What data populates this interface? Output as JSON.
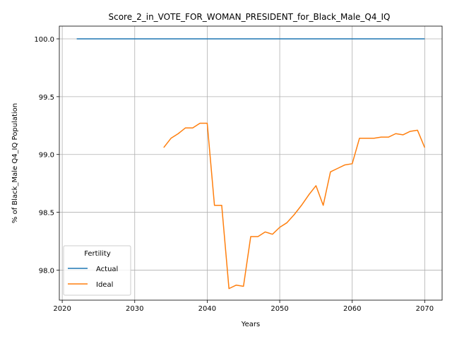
{
  "chart_data": {
    "type": "line",
    "title": "Score_2_in_VOTE_FOR_WOMAN_PRESIDENT_for_Black_Male_Q4_IQ",
    "xlabel": "Years",
    "ylabel": "% of Black_Male Q4_IQ Population",
    "xlim": [
      2019.6,
      2072.4
    ],
    "ylim": [
      97.74,
      100.11
    ],
    "xticks": [
      2020,
      2030,
      2040,
      2050,
      2060,
      2070
    ],
    "xtick_labels": [
      "2020",
      "2030",
      "2040",
      "2050",
      "2060",
      "2070"
    ],
    "yticks": [
      98.0,
      98.5,
      99.0,
      99.5,
      100.0
    ],
    "ytick_labels": [
      "98.0",
      "98.5",
      "99.0",
      "99.5",
      "100.0"
    ],
    "grid": true,
    "legend": {
      "title": "Fertility",
      "placement": "lower-left"
    },
    "series": [
      {
        "name": "Actual",
        "color": "#1f77b4",
        "x": [
          2022,
          2070
        ],
        "y": [
          100.0,
          100.0
        ]
      },
      {
        "name": "Ideal",
        "color": "#ff7f0e",
        "x": [
          2034,
          2035,
          2036,
          2037,
          2038,
          2039,
          2040,
          2041,
          2042,
          2043,
          2044,
          2045,
          2046,
          2047,
          2048,
          2049,
          2050,
          2051,
          2052,
          2053,
          2054,
          2055,
          2056,
          2057,
          2058,
          2059,
          2060,
          2061,
          2062,
          2063,
          2064,
          2065,
          2066,
          2067,
          2068,
          2069,
          2070
        ],
        "y": [
          99.06,
          99.14,
          99.18,
          99.23,
          99.23,
          99.27,
          99.27,
          98.56,
          98.56,
          97.84,
          97.87,
          97.86,
          98.29,
          98.29,
          98.33,
          98.31,
          98.37,
          98.41,
          98.48,
          98.56,
          98.65,
          98.73,
          98.56,
          98.85,
          98.88,
          98.91,
          98.92,
          99.14,
          99.14,
          99.14,
          99.15,
          99.15,
          99.18,
          99.17,
          99.2,
          99.21,
          99.06
        ]
      }
    ]
  }
}
